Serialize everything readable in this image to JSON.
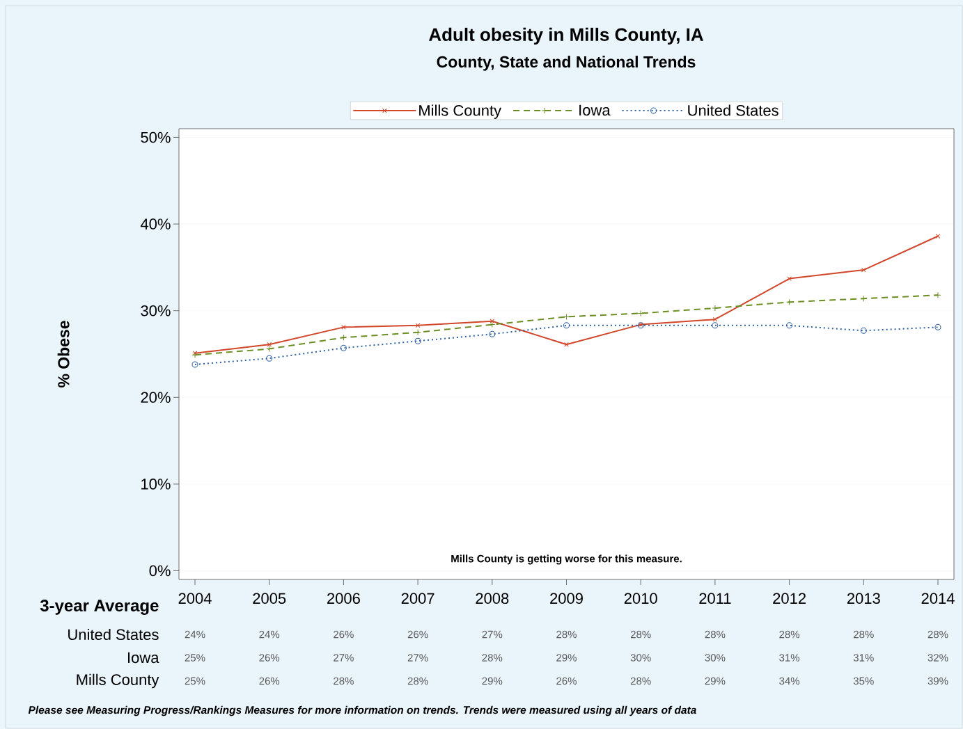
{
  "chart_data": {
    "type": "line",
    "title": "Adult obesity in Mills County, IA",
    "subtitle": "County, State and National Trends",
    "xlabel": "3-year Average",
    "ylabel": "% Obese",
    "categories": [
      "2004",
      "2005",
      "2006",
      "2007",
      "2008",
      "2009",
      "2010",
      "2011",
      "2012",
      "2013",
      "2014"
    ],
    "series": [
      {
        "name": "Mills County",
        "color": "#d2462a",
        "marker": "cross",
        "line_style": "solid",
        "values": [
          25.1,
          26.1,
          28.1,
          28.3,
          28.8,
          26.1,
          28.4,
          29.0,
          33.7,
          34.7,
          38.6
        ],
        "value_labels": [
          "25%",
          "26%",
          "28%",
          "28%",
          "29%",
          "26%",
          "28%",
          "29%",
          "34%",
          "35%",
          "39%"
        ]
      },
      {
        "name": "Iowa",
        "color": "#6b8e23",
        "marker": "plus",
        "line_style": "dashed",
        "values": [
          24.9,
          25.6,
          26.9,
          27.5,
          28.4,
          29.3,
          29.7,
          30.3,
          31.0,
          31.4,
          31.8
        ],
        "value_labels": [
          "25%",
          "26%",
          "27%",
          "27%",
          "28%",
          "29%",
          "30%",
          "30%",
          "31%",
          "31%",
          "32%"
        ]
      },
      {
        "name": "United States",
        "color": "#2c5f9e",
        "marker": "circle",
        "line_style": "dotted",
        "values": [
          23.8,
          24.5,
          25.7,
          26.5,
          27.3,
          28.3,
          28.3,
          28.3,
          28.3,
          27.7,
          28.1
        ],
        "value_labels": [
          "24%",
          "24%",
          "26%",
          "26%",
          "27%",
          "28%",
          "28%",
          "28%",
          "28%",
          "28%",
          "28%"
        ]
      }
    ],
    "ylim": [
      -1,
      51
    ],
    "yticks": [
      {
        "value": 0,
        "label": "0%"
      },
      {
        "value": 10,
        "label": "10%"
      },
      {
        "value": 20,
        "label": "20%"
      },
      {
        "value": 30,
        "label": "30%"
      },
      {
        "value": 40,
        "label": "40%"
      },
      {
        "value": 50,
        "label": "50%"
      }
    ],
    "grid": "y",
    "legend": "top",
    "annotations": [
      "Mills County is getting worse for this measure.",
      "Please see Measuring Progress/Rankings Measures for more information on trends. Trends were measured using all years of data"
    ]
  }
}
